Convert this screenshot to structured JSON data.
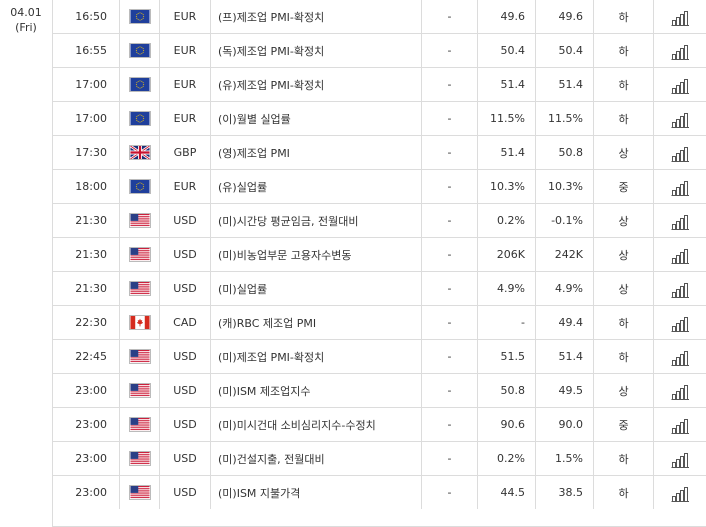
{
  "date": {
    "day": "04.01",
    "weekday": "(Fri)"
  },
  "colors": {
    "eu_blue": "#1f3f9c",
    "eu_star": "#ffcc00",
    "us_red": "#c8102e",
    "us_blue": "#2b3f86",
    "uk_blue": "#1b2f7a",
    "ca_red": "#d52b1e",
    "border": "#dcdcdc",
    "icon_stroke": "#555555"
  },
  "rows": [
    {
      "time": "16:50",
      "flag": "eu-flag",
      "currency": "EUR",
      "event": "(프)제조업 PMI-확정치",
      "importance": "-",
      "actual": "49.6",
      "forecast": "49.6",
      "previous": "하",
      "chart": "chart-icon"
    },
    {
      "time": "16:55",
      "flag": "eu-flag",
      "currency": "EUR",
      "event": "(독)제조업 PMI-확정치",
      "importance": "-",
      "actual": "50.4",
      "forecast": "50.4",
      "previous": "하",
      "chart": "chart-icon"
    },
    {
      "time": "17:00",
      "flag": "eu-flag",
      "currency": "EUR",
      "event": "(유)제조업 PMI-확정치",
      "importance": "-",
      "actual": "51.4",
      "forecast": "51.4",
      "previous": "하",
      "chart": "chart-icon"
    },
    {
      "time": "17:00",
      "flag": "eu-flag",
      "currency": "EUR",
      "event": "(이)월별 실업률",
      "importance": "-",
      "actual": "11.5%",
      "forecast": "11.5%",
      "previous": "하",
      "chart": "chart-icon"
    },
    {
      "time": "17:30",
      "flag": "uk-flag",
      "currency": "GBP",
      "event": "(영)제조업 PMI",
      "importance": "-",
      "actual": "51.4",
      "forecast": "50.8",
      "previous": "상",
      "chart": "chart-icon"
    },
    {
      "time": "18:00",
      "flag": "eu-flag",
      "currency": "EUR",
      "event": "(유)실업률",
      "importance": "-",
      "actual": "10.3%",
      "forecast": "10.3%",
      "previous": "중",
      "chart": "chart-icon"
    },
    {
      "time": "21:30",
      "flag": "us-flag",
      "currency": "USD",
      "event": "(미)시간당 평균임금, 전월대비",
      "importance": "-",
      "actual": "0.2%",
      "forecast": "-0.1%",
      "previous": "상",
      "chart": "chart-icon"
    },
    {
      "time": "21:30",
      "flag": "us-flag",
      "currency": "USD",
      "event": "(미)비농업부문 고용자수변동",
      "importance": "-",
      "actual": "206K",
      "forecast": "242K",
      "previous": "상",
      "chart": "chart-icon"
    },
    {
      "time": "21:30",
      "flag": "us-flag",
      "currency": "USD",
      "event": "(미)실업률",
      "importance": "-",
      "actual": "4.9%",
      "forecast": "4.9%",
      "previous": "상",
      "chart": "chart-icon"
    },
    {
      "time": "22:30",
      "flag": "ca-flag",
      "currency": "CAD",
      "event": "(캐)RBC 제조업 PMI",
      "importance": "-",
      "actual": "-",
      "forecast": "49.4",
      "previous": "하",
      "chart": "chart-icon"
    },
    {
      "time": "22:45",
      "flag": "us-flag",
      "currency": "USD",
      "event": "(미)제조업 PMI-확정치",
      "importance": "-",
      "actual": "51.5",
      "forecast": "51.4",
      "previous": "하",
      "chart": "chart-icon"
    },
    {
      "time": "23:00",
      "flag": "us-flag",
      "currency": "USD",
      "event": "(미)ISM 제조업지수",
      "importance": "-",
      "actual": "50.8",
      "forecast": "49.5",
      "previous": "상",
      "chart": "chart-icon"
    },
    {
      "time": "23:00",
      "flag": "us-flag",
      "currency": "USD",
      "event": "(미)미시건대 소비심리지수-수정치",
      "importance": "-",
      "actual": "90.6",
      "forecast": "90.0",
      "previous": "중",
      "chart": "chart-icon"
    },
    {
      "time": "23:00",
      "flag": "us-flag",
      "currency": "USD",
      "event": "(미)건설지출, 전월대비",
      "importance": "-",
      "actual": "0.2%",
      "forecast": "1.5%",
      "previous": "하",
      "chart": "chart-icon"
    },
    {
      "time": "23:00",
      "flag": "us-flag",
      "currency": "USD",
      "event": "(미)ISM 지불가격",
      "importance": "-",
      "actual": "44.5",
      "forecast": "38.5",
      "previous": "하",
      "chart": "chart-icon"
    }
  ]
}
